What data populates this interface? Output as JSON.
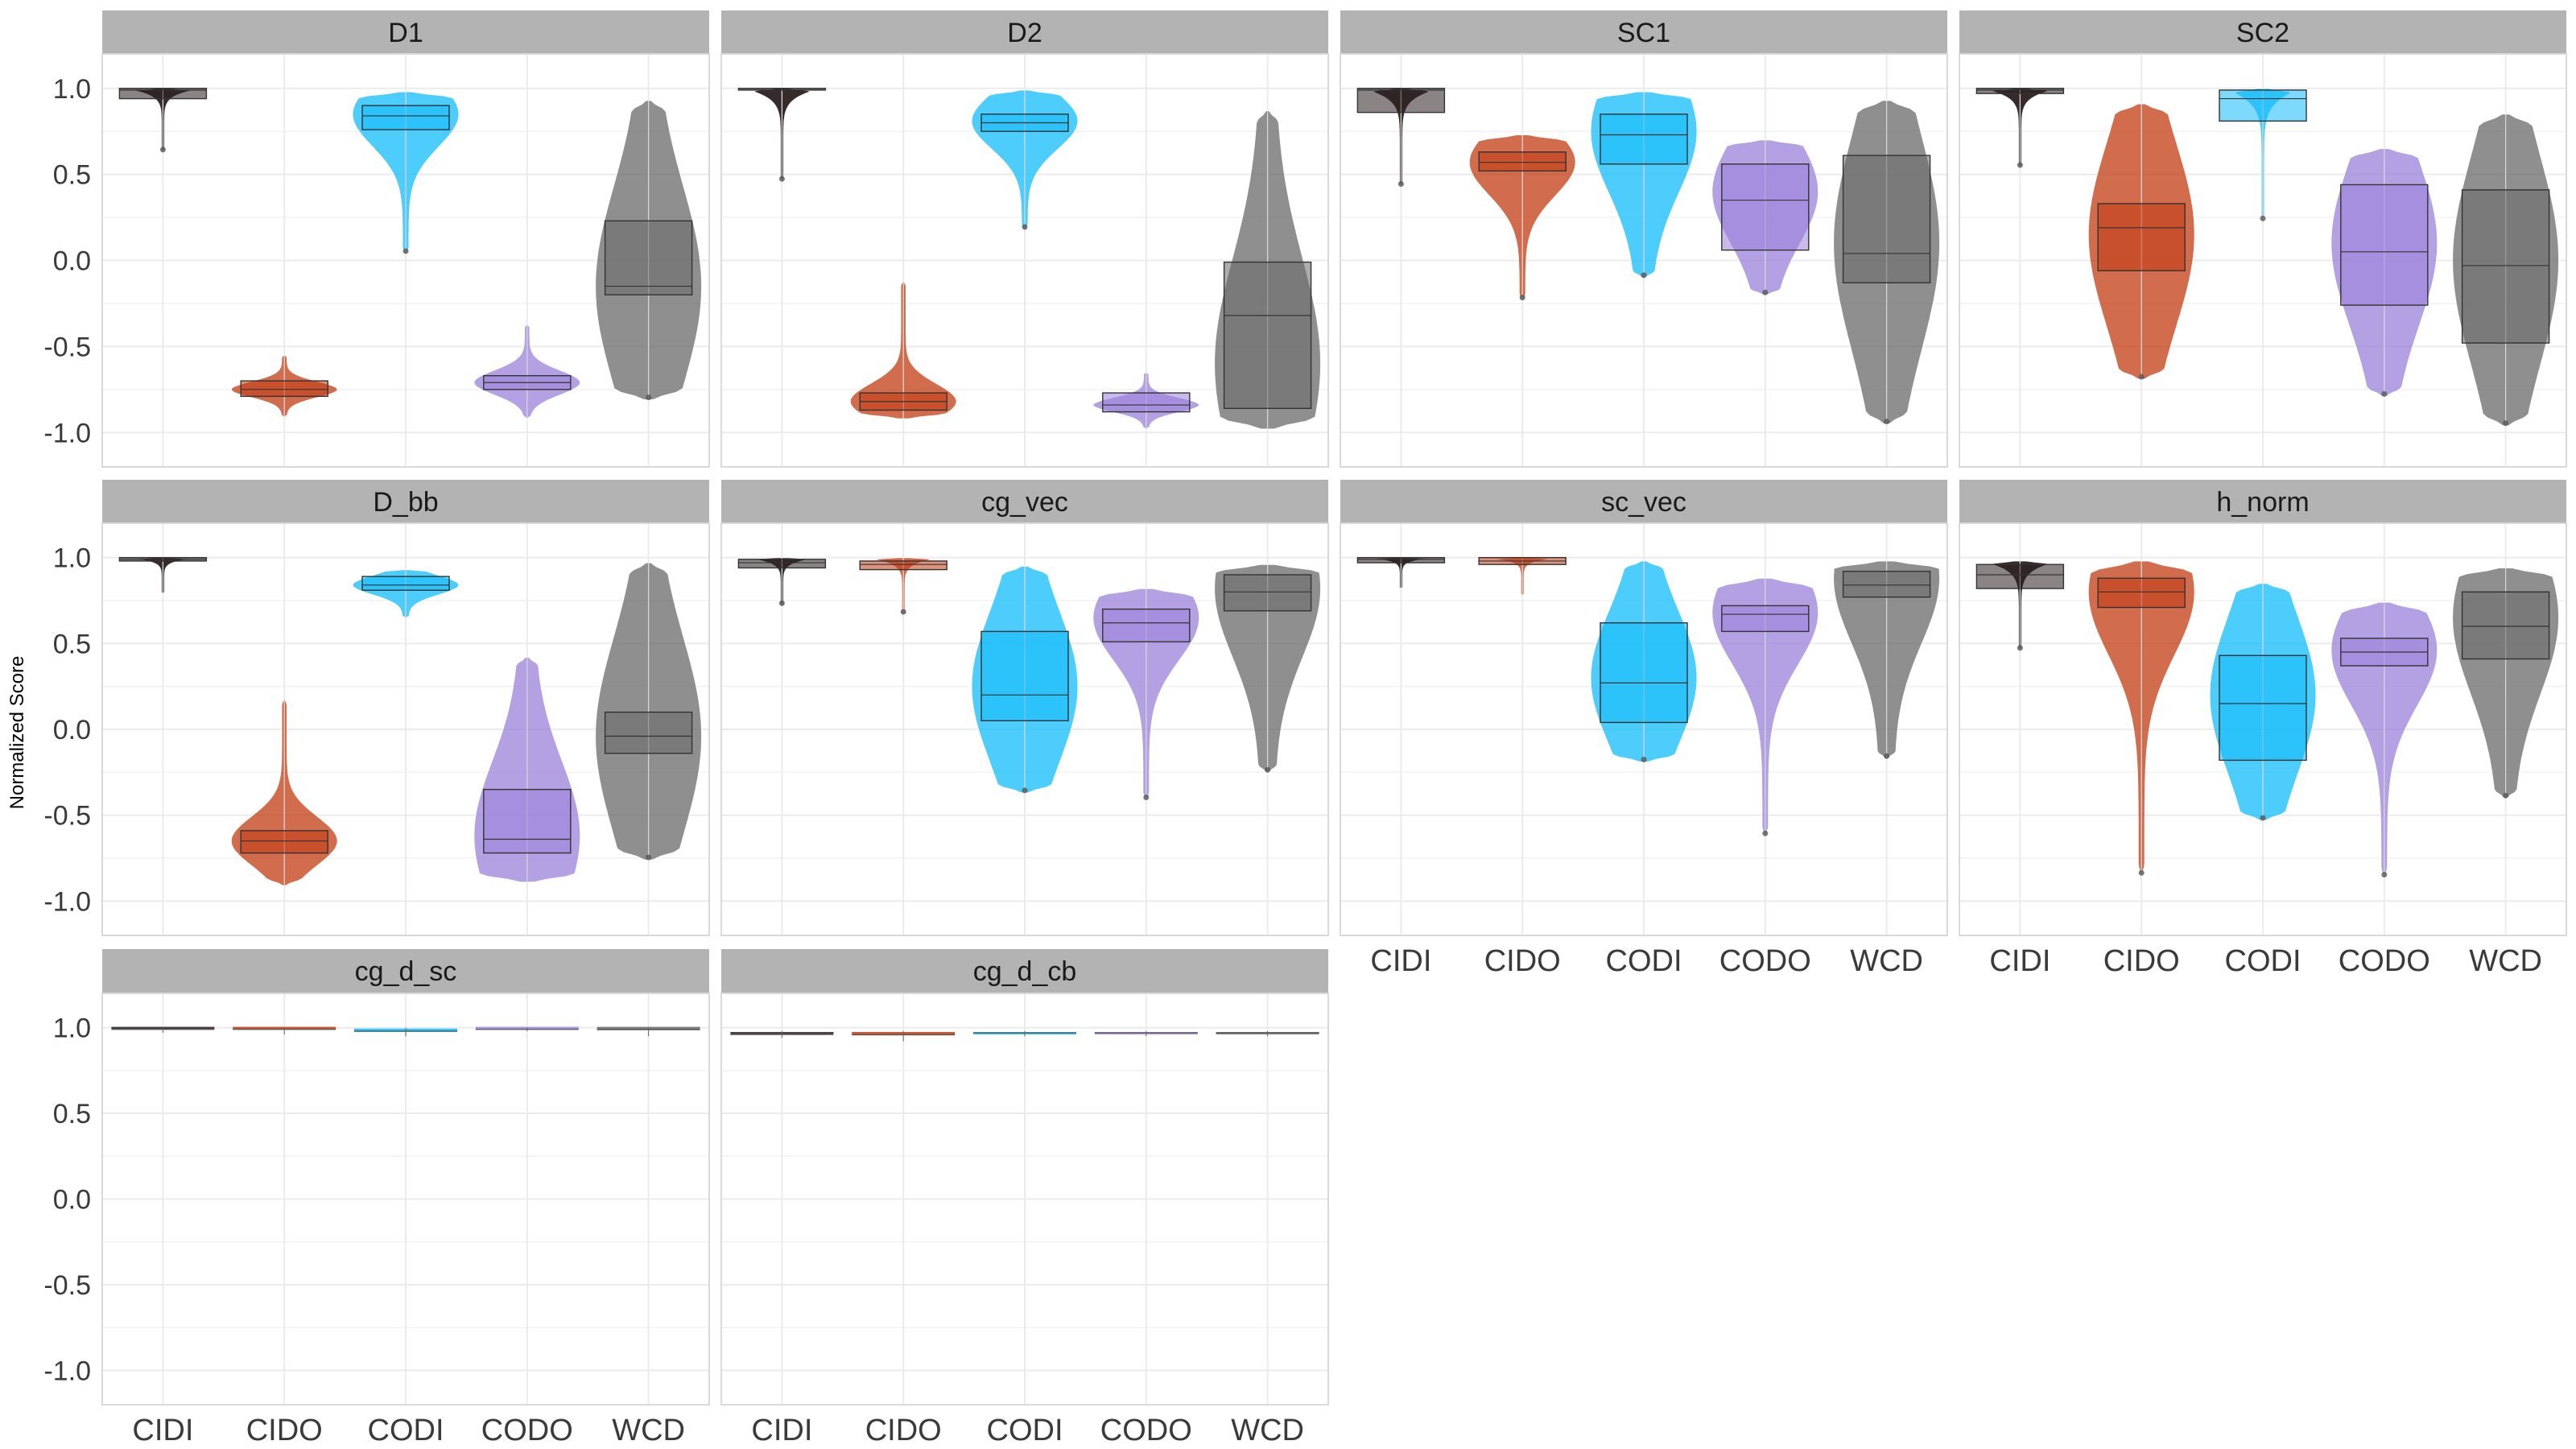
{
  "colors": {
    "CIDI": "#2b1f1f",
    "CIDO": "#c23b12",
    "CODI": "#12bcfa",
    "CODO": "#9a82da",
    "WCD": "#6a6a6a",
    "strip": "#b3b3b3",
    "panel_border": "#d9d9d9",
    "grid": "#ebebeb"
  },
  "chart_data": {
    "type": "violin",
    "ylabel": "Normalized Score",
    "ylim": [
      -1.2,
      1.2
    ],
    "y_ticks": [
      "1.0",
      "0.5",
      "0.0",
      "-0.5",
      "-1.0"
    ],
    "categories": [
      "CIDI",
      "CIDO",
      "CODI",
      "CODO",
      "WCD"
    ],
    "panels": [
      {
        "title": "D1",
        "groups": [
          {
            "name": "CIDI",
            "min": 0.63,
            "q1": 0.94,
            "median": 0.99,
            "q3": 1.0,
            "max": 1.0,
            "mass": 0.98,
            "shape": "top"
          },
          {
            "name": "CIDO",
            "min": -0.91,
            "q1": -0.79,
            "median": -0.75,
            "q3": -0.7,
            "max": -0.55,
            "mass": -0.75,
            "shape": "narrow"
          },
          {
            "name": "CODI",
            "min": 0.04,
            "q1": 0.76,
            "median": 0.84,
            "q3": 0.9,
            "max": 0.98,
            "mass": 0.85,
            "shape": "mid"
          },
          {
            "name": "CODO",
            "min": -0.92,
            "q1": -0.75,
            "median": -0.71,
            "q3": -0.67,
            "max": -0.37,
            "mass": -0.71,
            "shape": "narrow"
          },
          {
            "name": "WCD",
            "min": -0.81,
            "q1": -0.2,
            "median": -0.15,
            "q3": 0.23,
            "max": 0.93,
            "mass": -0.15,
            "shape": "wide"
          }
        ]
      },
      {
        "title": "D2",
        "groups": [
          {
            "name": "CIDI",
            "min": 0.46,
            "q1": 0.99,
            "median": 0.99,
            "q3": 1.0,
            "max": 1.0,
            "mass": 0.99,
            "shape": "top"
          },
          {
            "name": "CIDO",
            "min": -0.92,
            "q1": -0.87,
            "median": -0.82,
            "q3": -0.77,
            "max": -0.12,
            "mass": -0.82,
            "shape": "narrow"
          },
          {
            "name": "CODI",
            "min": 0.18,
            "q1": 0.75,
            "median": 0.8,
            "q3": 0.85,
            "max": 0.99,
            "mass": 0.81,
            "shape": "mid"
          },
          {
            "name": "CODO",
            "min": -0.98,
            "q1": -0.88,
            "median": -0.84,
            "q3": -0.77,
            "max": -0.65,
            "mass": -0.84,
            "shape": "narrow"
          },
          {
            "name": "WCD",
            "min": -0.98,
            "q1": -0.86,
            "median": -0.32,
            "q3": -0.01,
            "max": 0.87,
            "mass": -0.6,
            "shape": "wide"
          }
        ]
      },
      {
        "title": "SC1",
        "groups": [
          {
            "name": "CIDI",
            "min": 0.43,
            "q1": 0.86,
            "median": 0.99,
            "q3": 1.0,
            "max": 1.0,
            "mass": 0.97,
            "shape": "top"
          },
          {
            "name": "CIDO",
            "min": -0.23,
            "q1": 0.52,
            "median": 0.57,
            "q3": 0.63,
            "max": 0.73,
            "mass": 0.57,
            "shape": "mid"
          },
          {
            "name": "CODI",
            "min": -0.1,
            "q1": 0.56,
            "median": 0.73,
            "q3": 0.85,
            "max": 0.98,
            "mass": 0.75,
            "shape": "wide"
          },
          {
            "name": "CODO",
            "min": -0.2,
            "q1": 0.06,
            "median": 0.35,
            "q3": 0.56,
            "max": 0.7,
            "mass": 0.4,
            "shape": "wide"
          },
          {
            "name": "WCD",
            "min": -0.95,
            "q1": -0.13,
            "median": 0.04,
            "q3": 0.61,
            "max": 0.93,
            "mass": 0.1,
            "shape": "wide"
          }
        ]
      },
      {
        "title": "SC2",
        "groups": [
          {
            "name": "CIDI",
            "min": 0.54,
            "q1": 0.97,
            "median": 0.99,
            "q3": 1.0,
            "max": 1.0,
            "mass": 0.99,
            "shape": "top"
          },
          {
            "name": "CIDO",
            "min": -0.69,
            "q1": -0.06,
            "median": 0.19,
            "q3": 0.33,
            "max": 0.91,
            "mass": 0.15,
            "shape": "wide"
          },
          {
            "name": "CODI",
            "min": 0.23,
            "q1": 0.81,
            "median": 0.94,
            "q3": 0.99,
            "max": 1.0,
            "mass": 0.95,
            "shape": "top"
          },
          {
            "name": "CODO",
            "min": -0.79,
            "q1": -0.26,
            "median": 0.05,
            "q3": 0.44,
            "max": 0.65,
            "mass": 0.1,
            "shape": "wide"
          },
          {
            "name": "WCD",
            "min": -0.96,
            "q1": -0.48,
            "median": -0.03,
            "q3": 0.41,
            "max": 0.85,
            "mass": 0.0,
            "shape": "wide"
          }
        ]
      },
      {
        "title": "D_bb",
        "groups": [
          {
            "name": "CIDI",
            "min": 0.79,
            "q1": 0.98,
            "median": 0.99,
            "q3": 1.0,
            "max": 1.0,
            "mass": 0.99,
            "shape": "top"
          },
          {
            "name": "CIDO",
            "min": -0.91,
            "q1": -0.72,
            "median": -0.65,
            "q3": -0.59,
            "max": 0.18,
            "mass": -0.65,
            "shape": "narrow"
          },
          {
            "name": "CODI",
            "min": 0.65,
            "q1": 0.81,
            "median": 0.84,
            "q3": 0.89,
            "max": 0.93,
            "mass": 0.84,
            "shape": "mid"
          },
          {
            "name": "CODO",
            "min": -0.89,
            "q1": -0.72,
            "median": -0.64,
            "q3": -0.35,
            "max": 0.42,
            "mass": -0.62,
            "shape": "wide"
          },
          {
            "name": "WCD",
            "min": -0.76,
            "q1": -0.14,
            "median": -0.04,
            "q3": 0.1,
            "max": 0.97,
            "mass": -0.04,
            "shape": "wide"
          }
        ]
      },
      {
        "title": "cg_vec",
        "groups": [
          {
            "name": "CIDI",
            "min": 0.72,
            "q1": 0.94,
            "median": 0.97,
            "q3": 0.99,
            "max": 1.0,
            "mass": 0.97,
            "shape": "top"
          },
          {
            "name": "CIDO",
            "min": 0.67,
            "q1": 0.93,
            "median": 0.96,
            "q3": 0.98,
            "max": 1.0,
            "mass": 0.96,
            "shape": "top"
          },
          {
            "name": "CODI",
            "min": -0.37,
            "q1": 0.05,
            "median": 0.2,
            "q3": 0.57,
            "max": 0.95,
            "mass": 0.25,
            "shape": "wide"
          },
          {
            "name": "CODO",
            "min": -0.41,
            "q1": 0.51,
            "median": 0.62,
            "q3": 0.7,
            "max": 0.82,
            "mass": 0.65,
            "shape": "mid"
          },
          {
            "name": "WCD",
            "min": -0.25,
            "q1": 0.69,
            "median": 0.8,
            "q3": 0.9,
            "max": 0.96,
            "mass": 0.82,
            "shape": "wide"
          }
        ]
      },
      {
        "title": "sc_vec",
        "groups": [
          {
            "name": "CIDI",
            "min": 0.82,
            "q1": 0.97,
            "median": 0.99,
            "q3": 1.0,
            "max": 1.0,
            "mass": 0.99,
            "shape": "top"
          },
          {
            "name": "CIDO",
            "min": 0.78,
            "q1": 0.96,
            "median": 0.98,
            "q3": 1.0,
            "max": 1.0,
            "mass": 0.98,
            "shape": "top"
          },
          {
            "name": "CODI",
            "min": -0.19,
            "q1": 0.04,
            "median": 0.27,
            "q3": 0.62,
            "max": 0.98,
            "mass": 0.3,
            "shape": "wide"
          },
          {
            "name": "CODO",
            "min": -0.62,
            "q1": 0.57,
            "median": 0.67,
            "q3": 0.72,
            "max": 0.88,
            "mass": 0.68,
            "shape": "mid"
          },
          {
            "name": "WCD",
            "min": -0.17,
            "q1": 0.77,
            "median": 0.84,
            "q3": 0.92,
            "max": 0.98,
            "mass": 0.88,
            "shape": "wide"
          }
        ]
      },
      {
        "title": "h_norm",
        "groups": [
          {
            "name": "CIDI",
            "min": 0.46,
            "q1": 0.82,
            "median": 0.9,
            "q3": 0.96,
            "max": 0.98,
            "mass": 0.9,
            "shape": "top"
          },
          {
            "name": "CIDO",
            "min": -0.85,
            "q1": 0.71,
            "median": 0.8,
            "q3": 0.88,
            "max": 0.98,
            "mass": 0.8,
            "shape": "mid"
          },
          {
            "name": "CODI",
            "min": -0.53,
            "q1": -0.18,
            "median": 0.15,
            "q3": 0.43,
            "max": 0.85,
            "mass": 0.2,
            "shape": "wide"
          },
          {
            "name": "CODO",
            "min": -0.86,
            "q1": 0.37,
            "median": 0.45,
            "q3": 0.53,
            "max": 0.74,
            "mass": 0.46,
            "shape": "mid"
          },
          {
            "name": "WCD",
            "min": -0.4,
            "q1": 0.41,
            "median": 0.6,
            "q3": 0.8,
            "max": 0.94,
            "mass": 0.65,
            "shape": "wide"
          }
        ]
      },
      {
        "title": "cg_d_sc",
        "groups": [
          {
            "name": "CIDI",
            "min": 0.97,
            "q1": 0.99,
            "median": 0.99,
            "q3": 1.0,
            "max": 1.0,
            "mass": 0.99,
            "shape": "flat"
          },
          {
            "name": "CIDO",
            "min": 0.96,
            "q1": 0.99,
            "median": 0.99,
            "q3": 1.0,
            "max": 1.0,
            "mass": 0.99,
            "shape": "flat"
          },
          {
            "name": "CODI",
            "min": 0.95,
            "q1": 0.97,
            "median": 0.98,
            "q3": 0.99,
            "max": 1.0,
            "mass": 0.98,
            "shape": "flat"
          },
          {
            "name": "CODO",
            "min": 0.98,
            "q1": 0.99,
            "median": 0.99,
            "q3": 1.0,
            "max": 1.0,
            "mass": 0.99,
            "shape": "flat"
          },
          {
            "name": "WCD",
            "min": 0.95,
            "q1": 0.98,
            "median": 0.99,
            "q3": 1.0,
            "max": 1.0,
            "mass": 0.99,
            "shape": "flat"
          }
        ]
      },
      {
        "title": "cg_d_cb",
        "groups": [
          {
            "name": "CIDI",
            "min": 0.94,
            "q1": 0.96,
            "median": 0.96,
            "q3": 0.97,
            "max": 0.98,
            "mass": 0.96,
            "shape": "flat"
          },
          {
            "name": "CIDO",
            "min": 0.92,
            "q1": 0.95,
            "median": 0.96,
            "q3": 0.97,
            "max": 0.98,
            "mass": 0.96,
            "shape": "flat"
          },
          {
            "name": "CODI",
            "min": 0.95,
            "q1": 0.96,
            "median": 0.97,
            "q3": 0.97,
            "max": 0.98,
            "mass": 0.97,
            "shape": "flat"
          },
          {
            "name": "CODO",
            "min": 0.95,
            "q1": 0.96,
            "median": 0.97,
            "q3": 0.97,
            "max": 0.98,
            "mass": 0.97,
            "shape": "flat"
          },
          {
            "name": "WCD",
            "min": 0.95,
            "q1": 0.96,
            "median": 0.97,
            "q3": 0.97,
            "max": 0.98,
            "mass": 0.97,
            "shape": "flat"
          }
        ]
      }
    ]
  }
}
